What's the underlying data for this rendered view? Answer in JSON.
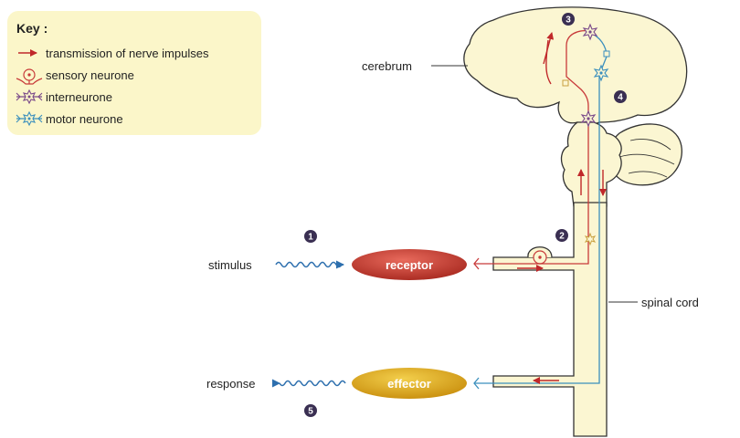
{
  "key": {
    "title": "Key :",
    "items": [
      {
        "label": "transmission of nerve impulses",
        "icon": "red-arrow-icon"
      },
      {
        "label": "sensory neurone",
        "icon": "sensory-neurone-icon"
      },
      {
        "label": "interneurone",
        "icon": "interneurone-icon"
      },
      {
        "label": "motor neurone",
        "icon": "motor-neurone-icon"
      }
    ]
  },
  "labels": {
    "cerebrum": "cerebrum",
    "stimulus": "stimulus",
    "receptor": "receptor",
    "spinal_cord": "spinal cord",
    "response": "response",
    "effector": "effector"
  },
  "steps": [
    "1",
    "2",
    "3",
    "4",
    "5"
  ],
  "colors": {
    "key_bg": "#fbf6c9",
    "body_fill": "#fbf6d2",
    "outline": "#333333",
    "sensory": "#c83a3a",
    "motor": "#3b8fbd",
    "arrow": "#c0282a",
    "wave": "#2d6fae",
    "receptor_pill": "#c0352b",
    "effector_pill": "#d9a514",
    "step_badge": "#3a2f52"
  }
}
